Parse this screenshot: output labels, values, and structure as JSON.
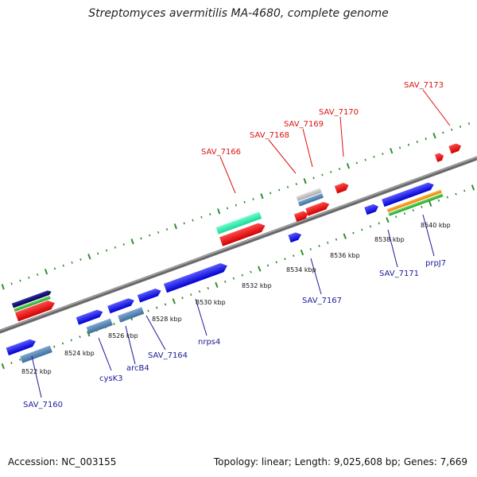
{
  "title": "Streptomyces avermitilis MA-4680, complete genome",
  "footer": {
    "accession": "Accession: NC_003155",
    "summary": "Topology: linear; Length: 9,025,608 bp; Genes: 7,669"
  },
  "colors": {
    "label_top": "#dd1111",
    "label_bottom": "#1a1a99",
    "backbone": "#8a8a8a",
    "ticks": "#2f8f2f"
  },
  "scale_labels": [
    "8522 kbp",
    "8524 kbp",
    "8526 kbp",
    "8528 kbp",
    "8530 kbp",
    "8532 kbp",
    "8534 kbp",
    "8536 kbp",
    "8538 kbp",
    "8540 kbp"
  ],
  "top_labels": [
    "SAV_7166",
    "SAV_7168",
    "SAV_7169",
    "SAV_7170",
    "SAV_7173"
  ],
  "bottom_labels": [
    "SAV_7160",
    "cysK3",
    "arcB4",
    "SAV_7164",
    "nrps4",
    "SAV_7167",
    "SAV_7171",
    "prpJ7"
  ]
}
